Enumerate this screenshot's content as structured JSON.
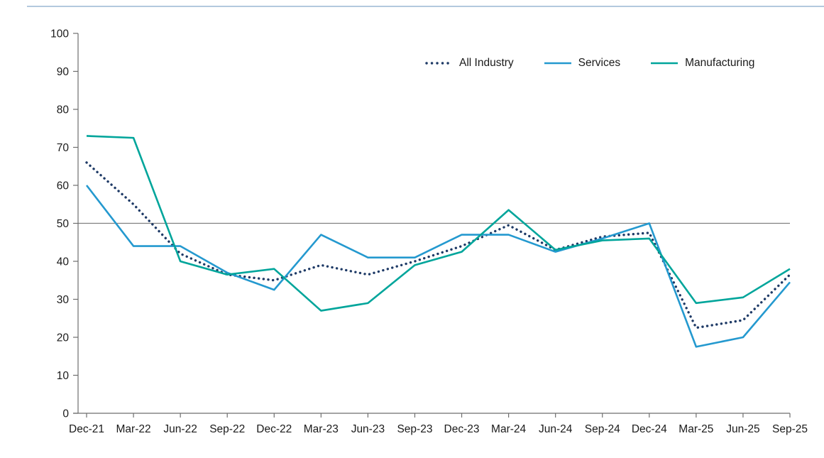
{
  "chart_data": {
    "type": "line",
    "title": "",
    "xlabel": "",
    "ylabel": "",
    "categories": [
      "Dec-21",
      "Mar-22",
      "Jun-22",
      "Sep-22",
      "Dec-22",
      "Mar-23",
      "Jun-23",
      "Sep-23",
      "Dec-23",
      "Mar-24",
      "Jun-24",
      "Sep-24",
      "Dec-24",
      "Mar-25",
      "Jun-25",
      "Sep-25"
    ],
    "series": [
      {
        "name": "All Industry",
        "color": "#1e3a66",
        "line_style": "dotted",
        "values": [
          66,
          55,
          42,
          36.5,
          35,
          39,
          36.5,
          40,
          44,
          49.5,
          43,
          46.5,
          47.5,
          22.5,
          24.5,
          36.5
        ]
      },
      {
        "name": "Services",
        "color": "#2499cf",
        "line_style": "solid",
        "values": [
          60,
          44,
          44,
          37,
          32.5,
          47,
          41,
          41,
          47,
          47,
          42.5,
          46,
          50,
          17.5,
          20,
          34.5
        ]
      },
      {
        "name": "Manufacturing",
        "color": "#00a59b",
        "line_style": "solid",
        "values": [
          73,
          72.5,
          40,
          36.5,
          38,
          27,
          29,
          39,
          42.5,
          53.5,
          43,
          45.5,
          46,
          29,
          30.5,
          38
        ]
      }
    ],
    "ylim": [
      0,
      100
    ],
    "y_ticks": [
      0,
      10,
      20,
      30,
      40,
      50,
      60,
      70,
      80,
      90,
      100
    ],
    "reference_line": 50,
    "grid": false,
    "legend_position": "top-right",
    "colors": {
      "axis": "#6e6e6e",
      "reference_line": "#808080",
      "text": "#1a1a1a",
      "top_border": "#b3c9de"
    }
  }
}
